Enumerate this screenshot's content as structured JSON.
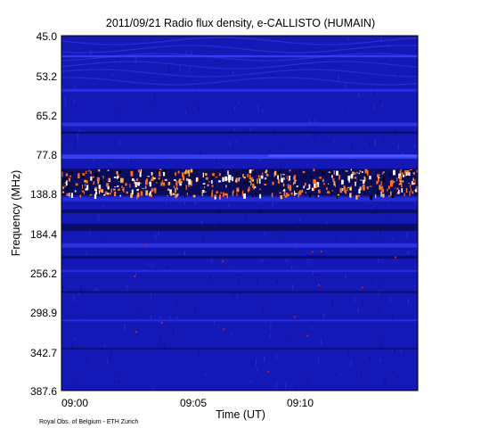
{
  "chart_data": {
    "type": "heatmap",
    "title": "2011/09/21  Radio flux density, e-CALLISTO (HUMAIN)",
    "xlabel": "Time (UT)",
    "ylabel": "Frequency (MHz)",
    "x_ticks": [
      "09:00",
      "09:05",
      "09:10"
    ],
    "x_range_minutes": [
      0,
      14.5
    ],
    "y_ticks": [
      "45.0",
      "53.2",
      "65.2",
      "77.8",
      "138.8",
      "184.4",
      "256.2",
      "298.9",
      "342.7",
      "387.6"
    ],
    "y_range_mhz": [
      45.0,
      387.6
    ],
    "colors": {
      "background": "#1418b4",
      "dark": "#0a0c5a",
      "hot": "#ff6a1e",
      "white": "#ffffff",
      "black": "#000000"
    },
    "credit": "Royal Obs. of Belgium - ETH Zurich"
  }
}
